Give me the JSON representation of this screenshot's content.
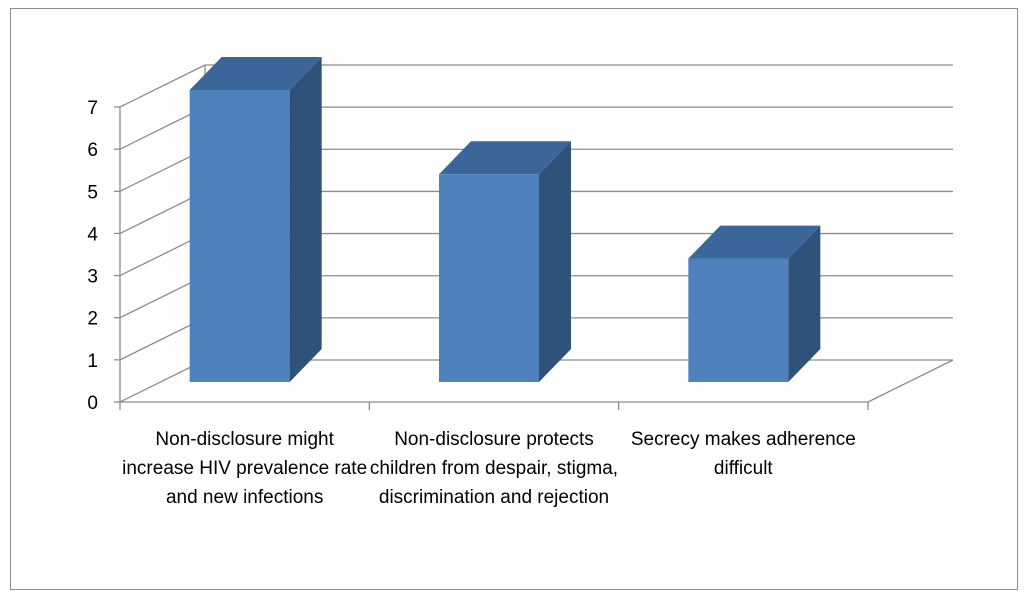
{
  "chart_data": {
    "type": "bar",
    "style": "3d-column",
    "title": "",
    "xlabel": "",
    "ylabel": "",
    "categories": [
      "Non-disclosure might increase HIV prevalence rate and new infections",
      "Non-disclosure protects children from despair, stigma, discrimination and rejection",
      "Secrecy makes adherence difficult"
    ],
    "values": [
      7,
      5,
      3
    ],
    "ylim": [
      0,
      7
    ],
    "yticks": [
      "0",
      "1",
      "2",
      "3",
      "4",
      "5",
      "6",
      "7"
    ],
    "grid": true,
    "legend": "none",
    "colors": {
      "bar_front": "#4f81bd",
      "bar_side": "#2f527a",
      "bar_top": "#3a6699",
      "grid": "#8c8c8c"
    }
  }
}
